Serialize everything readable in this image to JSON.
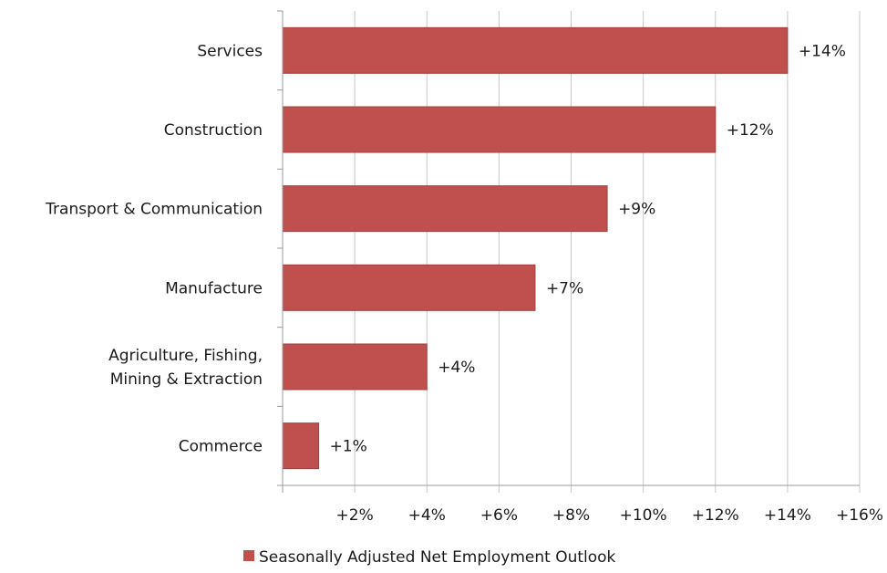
{
  "chart_data": {
    "type": "bar",
    "orientation": "horizontal",
    "categories": [
      "Services",
      "Construction",
      "Transport & Communication",
      "Manufacture",
      [
        "Agriculture, Fishing,",
        "Mining & Extraction"
      ],
      "Commerce"
    ],
    "series": [
      {
        "name": "Seasonally Adjusted Net Employment Outlook",
        "values": [
          14,
          12,
          9,
          7,
          4,
          1
        ],
        "labels": [
          "+14%",
          "+12%",
          "+9%",
          "+7%",
          "+4%",
          "+1%"
        ],
        "color": "#c0504d"
      }
    ],
    "x_ticks": [
      {
        "value": 2,
        "label": "+2%"
      },
      {
        "value": 4,
        "label": "+4%"
      },
      {
        "value": 6,
        "label": "+6%"
      },
      {
        "value": 8,
        "label": "+8%"
      },
      {
        "value": 10,
        "label": "+10%"
      },
      {
        "value": 12,
        "label": "+12%"
      },
      {
        "value": 14,
        "label": "+14%"
      },
      {
        "value": 16,
        "label": "+16%"
      }
    ],
    "xlim": [
      0,
      16
    ],
    "grid": "vertical",
    "legend_position": "bottom",
    "colors": {
      "bar": "#c0504d",
      "bar_border": "#a0403d",
      "grid": "#c8c8c8",
      "axis": "#9a9a9a"
    }
  }
}
